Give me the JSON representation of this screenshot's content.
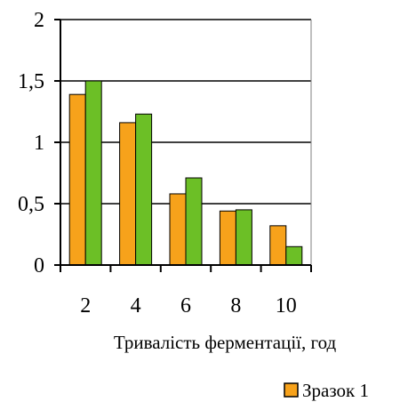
{
  "chart_data": {
    "type": "bar",
    "categories": [
      "2",
      "4",
      "6",
      "8",
      "10"
    ],
    "series": [
      {
        "name": "Зразок 1",
        "values": [
          1.39,
          1.16,
          0.58,
          0.44,
          0.32
        ],
        "color": "#f7a21b"
      },
      {
        "name": "",
        "values": [
          1.5,
          1.23,
          0.71,
          0.45,
          0.15
        ],
        "color": "#6cbf26"
      }
    ],
    "title": "",
    "xlabel": "Тривалість ферментації, год",
    "ylabel": "",
    "ylim": [
      0,
      2
    ],
    "yticks": [
      0,
      0.5,
      1,
      1.5,
      2
    ],
    "ytick_labels": [
      "0",
      "0,5",
      "1",
      "1,5",
      "2"
    ],
    "grid": true,
    "legend_position": "bottom-right"
  }
}
